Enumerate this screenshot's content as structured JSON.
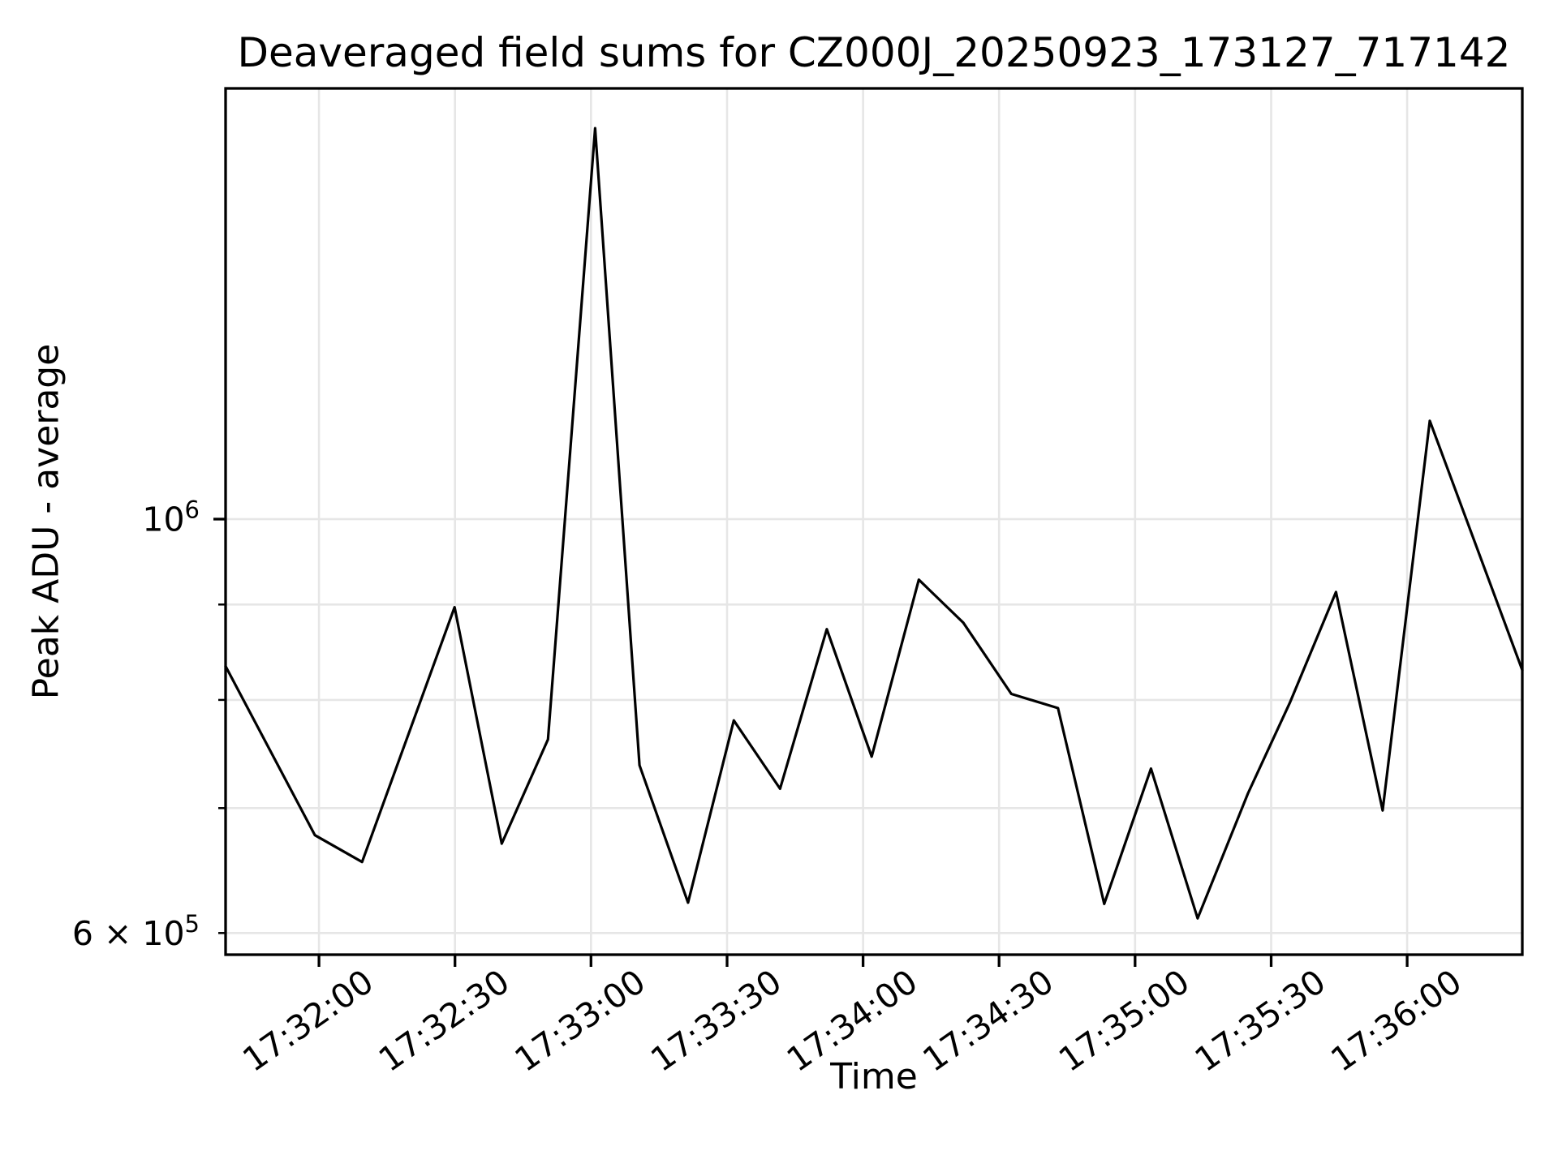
{
  "figure": {
    "title": "Deaveraged field sums for CZ000J_20250923_173127_717142"
  },
  "chart_data": {
    "type": "line",
    "title": "Deaveraged field sums for CZ000J_20250923_173127_717142",
    "xlabel": "Time",
    "ylabel": "Peak ADU - average",
    "yscale": "log",
    "ylim": [
      584200,
      1701600
    ],
    "t_domain_seconds_after_173200": [
      -20.6,
      265.4
    ],
    "grid": true,
    "legend_position": "none",
    "line_color": "#000000",
    "grid_color": "#e6e6e6",
    "spine_color": "#000000",
    "background": "#ffffff",
    "x_ticks": [
      {
        "t": 0,
        "label": "17:32:00"
      },
      {
        "t": 30,
        "label": "17:32:30"
      },
      {
        "t": 60,
        "label": "17:33:00"
      },
      {
        "t": 90,
        "label": "17:33:30"
      },
      {
        "t": 120,
        "label": "17:34:00"
      },
      {
        "t": 150,
        "label": "17:34:30"
      },
      {
        "t": 180,
        "label": "17:35:00"
      },
      {
        "t": 210,
        "label": "17:35:30"
      },
      {
        "t": 240,
        "label": "17:36:00"
      }
    ],
    "y_ticks": [
      {
        "value": 1000000,
        "label": "10^6",
        "kind": "major"
      },
      {
        "value": 600000,
        "label": "6 × 10^5",
        "kind": "minor-labeled"
      }
    ],
    "y_minor_ticks": [
      700000,
      800000,
      900000
    ],
    "y_gridlines": [
      600000,
      700000,
      800000,
      900000,
      1000000
    ],
    "points": [
      {
        "time": "17:31:39",
        "t": -20.6,
        "value": 834000
      },
      {
        "time": "17:31:59",
        "t": -0.9,
        "value": 677000
      },
      {
        "time": "17:32:09",
        "t": 9.5,
        "value": 655000
      },
      {
        "time": "17:32:30",
        "t": 29.9,
        "value": 897000
      },
      {
        "time": "17:32:40",
        "t": 40.3,
        "value": 670000
      },
      {
        "time": "17:32:50",
        "t": 50.5,
        "value": 762000
      },
      {
        "time": "17:33:01",
        "t": 60.9,
        "value": 1620000
      },
      {
        "time": "17:33:11",
        "t": 70.7,
        "value": 738000
      },
      {
        "time": "17:33:21",
        "t": 81.4,
        "value": 623000
      },
      {
        "time": "17:33:32",
        "t": 91.5,
        "value": 780000
      },
      {
        "time": "17:33:42",
        "t": 101.7,
        "value": 717000
      },
      {
        "time": "17:33:52",
        "t": 112.0,
        "value": 873000
      },
      {
        "time": "17:34:02",
        "t": 121.9,
        "value": 746000
      },
      {
        "time": "17:34:12",
        "t": 132.3,
        "value": 928000
      },
      {
        "time": "17:34:22",
        "t": 142.1,
        "value": 880000
      },
      {
        "time": "17:34:33",
        "t": 152.7,
        "value": 806000
      },
      {
        "time": "17:34:43",
        "t": 163.0,
        "value": 792000
      },
      {
        "time": "17:34:53",
        "t": 173.2,
        "value": 622000
      },
      {
        "time": "17:35:04",
        "t": 183.5,
        "value": 735000
      },
      {
        "time": "17:35:14",
        "t": 193.8,
        "value": 611000
      },
      {
        "time": "17:35:25",
        "t": 204.9,
        "value": 713000
      },
      {
        "time": "17:35:34",
        "t": 214.1,
        "value": 797000
      },
      {
        "time": "17:35:44",
        "t": 224.3,
        "value": 914000
      },
      {
        "time": "17:35:55",
        "t": 234.6,
        "value": 698000
      },
      {
        "time": "17:36:05",
        "t": 245.0,
        "value": 1129000
      },
      {
        "time": "17:36:25",
        "t": 265.4,
        "value": 830000
      }
    ]
  }
}
